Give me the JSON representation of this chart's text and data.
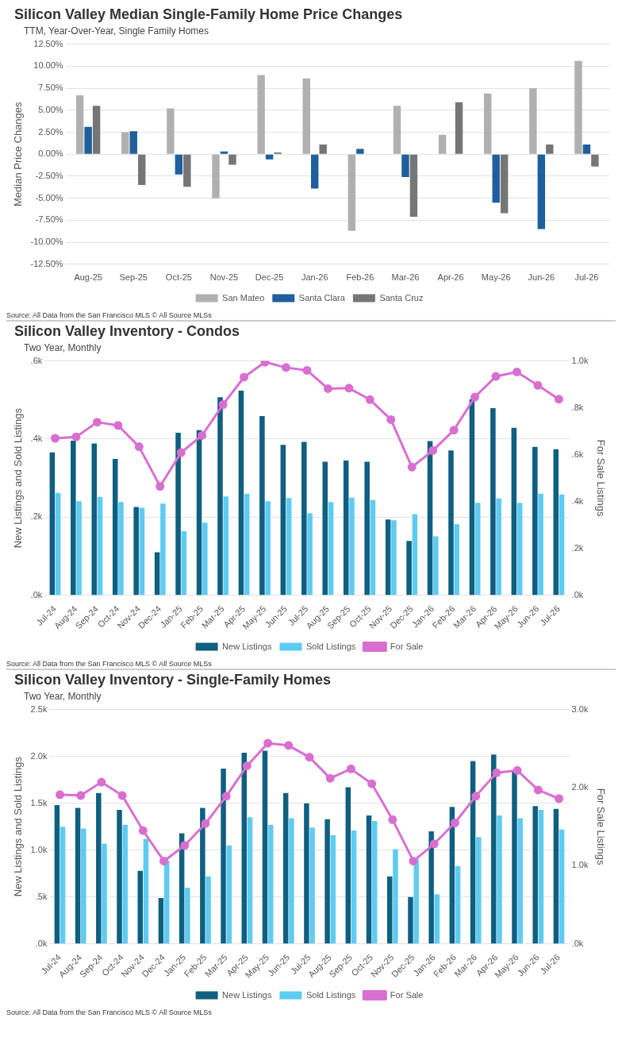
{
  "chart_data": [
    {
      "type": "bar",
      "title": "Silicon Valley Median Single-Family Home Price Changes",
      "subtitle": "TTM, Year-Over-Year, Single Family Homes",
      "ylabel": "Median Price Changes",
      "categories": [
        "Aug-25",
        "Sep-25",
        "Oct-25",
        "Nov-25",
        "Dec-25",
        "Jan-26",
        "Feb-26",
        "Mar-26",
        "Apr-26",
        "May-26",
        "Jun-26",
        "Jul-26"
      ],
      "series": [
        {
          "name": "San Mateo",
          "color": "#b0b0b0",
          "values": [
            6.7,
            2.5,
            5.2,
            -5.0,
            9.0,
            8.6,
            -8.7,
            5.5,
            2.2,
            6.9,
            7.5,
            10.6
          ]
        },
        {
          "name": "Santa Clara",
          "color": "#1f5f9e",
          "values": [
            3.1,
            2.6,
            -2.3,
            0.3,
            -0.6,
            -3.9,
            0.6,
            -2.6,
            null,
            -5.5,
            -8.5,
            1.1
          ]
        },
        {
          "name": "Santa Cruz",
          "color": "#767676",
          "values": [
            5.5,
            -3.5,
            -3.7,
            -1.2,
            0.2,
            1.1,
            null,
            -7.1,
            5.9,
            -6.7,
            1.1,
            -1.4
          ]
        }
      ],
      "ylim": [
        -12.5,
        12.5
      ],
      "yticks": [
        {
          "value": -12.5,
          "label": "-12.50%"
        },
        {
          "value": -10,
          "label": "-10.00%"
        },
        {
          "value": -7.5,
          "label": "-7.50%"
        },
        {
          "value": -5,
          "label": "-5.00%"
        },
        {
          "value": -2.5,
          "label": "-2.50%"
        },
        {
          "value": 0,
          "label": "0.00%"
        },
        {
          "value": 2.5,
          "label": "2.50%"
        },
        {
          "value": 5,
          "label": "5.00%"
        },
        {
          "value": 7.5,
          "label": "7.50%"
        },
        {
          "value": 10,
          "label": "10.00%"
        },
        {
          "value": 12.5,
          "label": "12.50%"
        }
      ],
      "grid": "y",
      "legend": "bottom",
      "annotations": [
        "Source: All Data from the San Francisco MLS © All Source MLSs"
      ]
    },
    {
      "type": "bar",
      "title": "Silicon Valley Inventory - Condos",
      "subtitle": "Two Year, Monthly",
      "ylabel": "New Listings and Sold Listings",
      "y2label": "For Sale Listings",
      "categories": [
        "Jul-24",
        "Aug-24",
        "Sep-24",
        "Oct-24",
        "Nov-24",
        "Dec-24",
        "Jan-25",
        "Feb-25",
        "Mar-25",
        "Apr-25",
        "May-25",
        "Jun-25",
        "Jul-25",
        "Aug-25",
        "Sep-25",
        "Oct-25",
        "Nov-25",
        "Dec-25",
        "Jan-26",
        "Feb-26",
        "Mar-26",
        "Apr-26",
        "May-26",
        "Jun-26",
        "Jul-26"
      ],
      "series": [
        {
          "name": "New Listings",
          "color": "#0f5f80",
          "values": [
            366,
            396,
            389,
            349,
            226,
            110,
            416,
            423,
            507,
            524,
            459,
            385,
            393,
            342,
            345,
            342,
            194,
            139,
            395,
            371,
            502,
            479,
            429,
            380,
            374
          ]
        },
        {
          "name": "Sold Listings",
          "color": "#5ecbf2",
          "values": [
            262,
            241,
            252,
            239,
            224,
            235,
            164,
            186,
            253,
            260,
            241,
            249,
            210,
            239,
            250,
            244,
            192,
            208,
            151,
            182,
            237,
            248,
            237,
            260,
            258
          ]
        },
        {
          "name": "For Sale",
          "type": "line",
          "axis": "y2",
          "color": "#d86fd0",
          "values": [
            670,
            676,
            739,
            725,
            634,
            465,
            609,
            682,
            814,
            931,
            995,
            972,
            960,
            882,
            884,
            835,
            750,
            547,
            618,
            705,
            846,
            934,
            953,
            896,
            837
          ]
        }
      ],
      "ylim": [
        0,
        600
      ],
      "yticks": [
        {
          "value": 0,
          "label": ".0k"
        },
        {
          "value": 200,
          "label": ".2k"
        },
        {
          "value": 400,
          "label": ".4k"
        },
        {
          "value": 600,
          "label": ".6k"
        }
      ],
      "y2lim": [
        0,
        1000
      ],
      "y2ticks": [
        {
          "value": 0,
          "label": ".0k"
        },
        {
          "value": 200,
          "label": ".2k"
        },
        {
          "value": 400,
          "label": ".4k"
        },
        {
          "value": 600,
          "label": ".6k"
        },
        {
          "value": 800,
          "label": ".8k"
        },
        {
          "value": 1000,
          "label": "1.0k"
        }
      ],
      "grid": "y",
      "legend": "bottom",
      "marker": "circle",
      "line_style": "solid",
      "annotations": [
        "Source: All Data from the San Francisco MLS © All Source MLSs"
      ]
    },
    {
      "type": "bar",
      "title": "Silicon Valley Inventory - Single-Family Homes",
      "subtitle": "Two Year, Monthly",
      "ylabel": "New Listings and Sold Listings",
      "y2label": "For Sale Listings",
      "categories": [
        "Jul-24",
        "Aug-24",
        "Sep-24",
        "Oct-24",
        "Nov-24",
        "Dec-24",
        "Jan-25",
        "Feb-25",
        "Mar-25",
        "Apr-25",
        "May-25",
        "Jun-25",
        "Jul-25",
        "Aug-25",
        "Sep-25",
        "Oct-25",
        "Nov-25",
        "Dec-25",
        "Jan-26",
        "Feb-26",
        "Mar-26",
        "Apr-26",
        "May-26",
        "Jun-26",
        "Jul-26"
      ],
      "series": [
        {
          "name": "New Listings",
          "color": "#0f5f80",
          "values": [
            1480,
            1450,
            1610,
            1430,
            780,
            490,
            1180,
            1450,
            1870,
            2040,
            2060,
            1610,
            1500,
            1330,
            1670,
            1370,
            720,
            500,
            1200,
            1460,
            1950,
            2020,
            1840,
            1470,
            1440
          ]
        },
        {
          "name": "Sold Listings",
          "color": "#5ecbf2",
          "values": [
            1250,
            1230,
            1070,
            1270,
            1120,
            890,
            600,
            720,
            1050,
            1350,
            1270,
            1340,
            1240,
            1160,
            1210,
            1310,
            1010,
            900,
            530,
            830,
            1140,
            1370,
            1340,
            1430,
            1220
          ]
        },
        {
          "name": "For Sale",
          "type": "line",
          "axis": "y2",
          "color": "#d86fd0",
          "values": [
            1910,
            1900,
            2070,
            1900,
            1450,
            1060,
            1260,
            1540,
            1890,
            2280,
            2570,
            2540,
            2390,
            2120,
            2240,
            2050,
            1590,
            1060,
            1280,
            1550,
            1890,
            2190,
            2220,
            1970,
            1860
          ]
        }
      ],
      "ylim": [
        0,
        2500
      ],
      "yticks": [
        {
          "value": 0,
          "label": ".0k"
        },
        {
          "value": 500,
          "label": ".5k"
        },
        {
          "value": 1000,
          "label": "1.0k"
        },
        {
          "value": 1500,
          "label": "1.5k"
        },
        {
          "value": 2000,
          "label": "2.0k"
        },
        {
          "value": 2500,
          "label": "2.5k"
        }
      ],
      "y2lim": [
        0,
        3000
      ],
      "y2ticks": [
        {
          "value": 0,
          "label": ".0k"
        },
        {
          "value": 1000,
          "label": "1.0k"
        },
        {
          "value": 2000,
          "label": "2.0k"
        },
        {
          "value": 3000,
          "label": "3.0k"
        }
      ],
      "grid": "y",
      "legend": "bottom",
      "marker": "circle",
      "line_style": "solid",
      "annotations": [
        "Source: All Data from the San Francisco MLS © All Source MLSs"
      ]
    }
  ]
}
